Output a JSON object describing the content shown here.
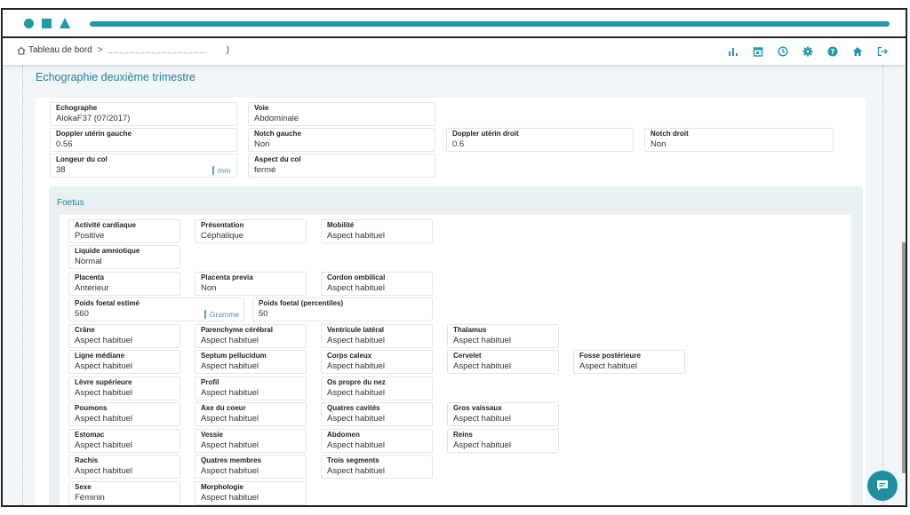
{
  "header": {
    "breadcrumb_root": "Tableau de bord",
    "breadcrumb_sep": ">",
    "breadcrumb_end": ")"
  },
  "page_title": "Echographie deuxième trimestre",
  "colors": {
    "accent": "#1f9aa6",
    "title": "#1f7fa0"
  },
  "exam": {
    "echographe": {
      "label": "Echographe",
      "value": "AlokaF37 (07/2017)"
    },
    "voie": {
      "label": "Voie",
      "value": "Abdominale"
    },
    "doppler_gauche": {
      "label": "Doppler utérin gauche",
      "value": "0.56"
    },
    "notch_gauche": {
      "label": "Notch gauche",
      "value": "Non"
    },
    "doppler_droit": {
      "label": "Doppler utérin droit",
      "value": "0.6"
    },
    "notch_droit": {
      "label": "Notch droit",
      "value": "Non"
    },
    "longueur_col": {
      "label": "Longeur du col",
      "value": "38",
      "unit": "mm"
    },
    "aspect_col": {
      "label": "Aspect du col",
      "value": "fermé"
    }
  },
  "foetus": {
    "title": "Foetus",
    "activite": {
      "label": "Activité cardiaque",
      "value": "Positive"
    },
    "presentation": {
      "label": "Présentation",
      "value": "Céphalique"
    },
    "mobilite": {
      "label": "Mobilité",
      "value": "Aspect habituel"
    },
    "liquide": {
      "label": "Liquide amniotique",
      "value": "Normal"
    },
    "placenta": {
      "label": "Placenta",
      "value": "Anterieur"
    },
    "placenta_previa": {
      "label": "Placenta previa",
      "value": "Non"
    },
    "cordon": {
      "label": "Cordon ombilical",
      "value": "Aspect habituel"
    },
    "poids": {
      "label": "Poids foetal estimé",
      "value": "560",
      "unit": "Gramme"
    },
    "poids_pct": {
      "label": "Poids foetal (percentiles)",
      "value": "50"
    },
    "crane": {
      "label": "Crâne",
      "value": "Aspect habituel"
    },
    "parenchyme": {
      "label": "Parenchyme cérébral",
      "value": "Aspect habituel"
    },
    "ventricule": {
      "label": "Ventricule latéral",
      "value": "Aspect habituel"
    },
    "thalamus": {
      "label": "Thalamus",
      "value": "Aspect habituel"
    },
    "ligne": {
      "label": "Ligne médiane",
      "value": "Aspect habituel"
    },
    "septum": {
      "label": "Septum pellucidum",
      "value": "Aspect habituel"
    },
    "corps": {
      "label": "Corps caleux",
      "value": "Aspect habituel"
    },
    "cervelet": {
      "label": "Cervelet",
      "value": "Aspect habituel"
    },
    "fosse": {
      "label": "Fosse postérieure",
      "value": "Aspect habituel"
    },
    "levre": {
      "label": "Lèvre supérieure",
      "value": "Aspect habituel"
    },
    "profil": {
      "label": "Profil",
      "value": "Aspect habituel"
    },
    "os_nez": {
      "label": "Os propre du nez",
      "value": "Aspect habituel"
    },
    "poumons": {
      "label": "Poumons",
      "value": "Aspect habituel"
    },
    "axe": {
      "label": "Axe du coeur",
      "value": "Aspect habituel"
    },
    "cavites": {
      "label": "Quatres cavités",
      "value": "Aspect habituel"
    },
    "gros": {
      "label": "Gros vaissaux",
      "value": "Aspect habituel"
    },
    "estomac": {
      "label": "Estomac",
      "value": "Aspect habituel"
    },
    "vessie": {
      "label": "Vessie",
      "value": "Aspect habituel"
    },
    "abdomen": {
      "label": "Abdomen",
      "value": "Aspect habituel"
    },
    "reins": {
      "label": "Reins",
      "value": "Aspect habituel"
    },
    "rachis": {
      "label": "Rachis",
      "value": "Aspect habituel"
    },
    "membres": {
      "label": "Quatres membres",
      "value": "Aspect habituel"
    },
    "segments": {
      "label": "Trois segments",
      "value": "Aspect habituel"
    },
    "sexe": {
      "label": "Sexe",
      "value": "Féminin"
    },
    "morphologie": {
      "label": "Morphologie",
      "value": "Aspect habituel"
    }
  }
}
